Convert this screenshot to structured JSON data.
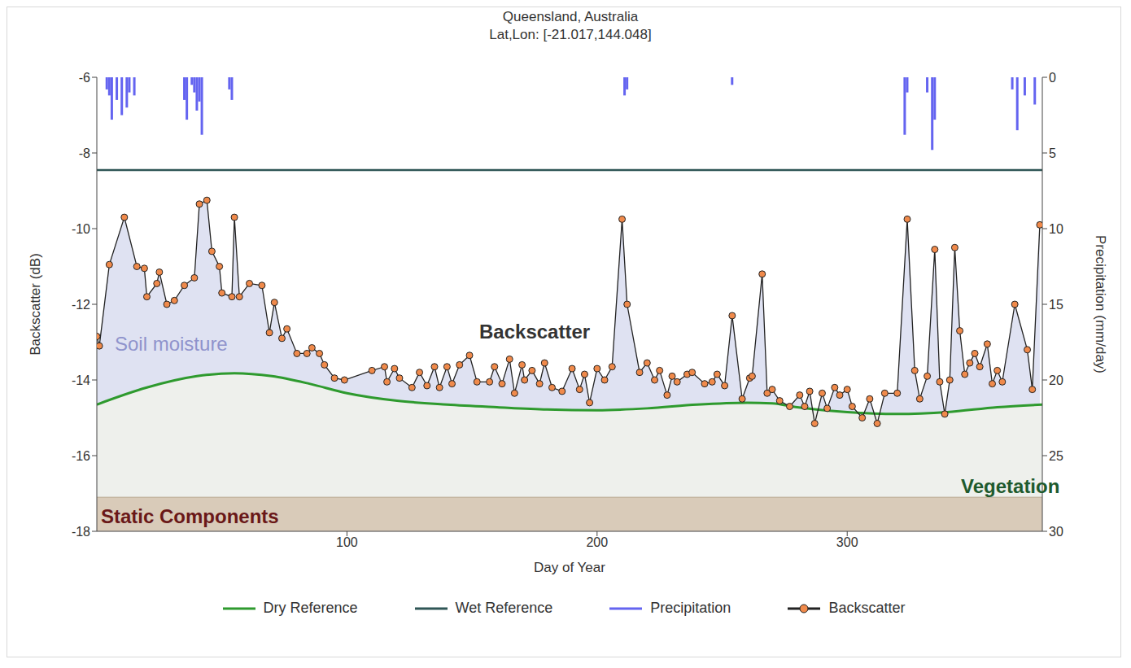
{
  "chart_data": {
    "type": "line",
    "title": "Queensland, Australia",
    "subtitle": "Lat,Lon: [-21.017,144.048]",
    "x_label": "Day of Year",
    "y_label": "Backscatter (dB)",
    "y2_label": "Precipitation (mm/day)",
    "xlim": [
      0,
      378
    ],
    "xticks": [
      100,
      200,
      300
    ],
    "ylim": [
      -18,
      -6
    ],
    "yticks": [
      -18,
      -16,
      -14,
      -12,
      -10,
      -8,
      -6
    ],
    "y2lim": [
      30,
      0
    ],
    "y2ticks": [
      0,
      5,
      10,
      15,
      20,
      25,
      30
    ],
    "annotations": [
      "Soil moisture",
      "Backscatter",
      "Vegetation"
    ],
    "static_components": {
      "label": "Static Components",
      "level": -17.1
    },
    "series": [
      {
        "name": "Dry Reference",
        "color": "#2e9a2e",
        "type": "line",
        "x": [
          0,
          20,
          40,
          55,
          70,
          85,
          100,
          120,
          140,
          160,
          180,
          200,
          220,
          240,
          260,
          270,
          280,
          300,
          320,
          340,
          360,
          378
        ],
        "values": [
          -14.65,
          -14.2,
          -13.9,
          -13.82,
          -13.9,
          -14.1,
          -14.35,
          -14.55,
          -14.65,
          -14.72,
          -14.78,
          -14.8,
          -14.75,
          -14.65,
          -14.6,
          -14.62,
          -14.72,
          -14.85,
          -14.9,
          -14.85,
          -14.72,
          -14.65
        ]
      },
      {
        "name": "Wet Reference",
        "color": "#2f5656",
        "type": "line",
        "x": [
          0,
          378
        ],
        "values": [
          -8.45,
          -8.45
        ]
      },
      {
        "name": "Precipitation",
        "color": "#6464f0",
        "type": "bar",
        "axis": "y2",
        "x": [
          4,
          5,
          6,
          8,
          10,
          12,
          13,
          15,
          35,
          36,
          38,
          39,
          40,
          41,
          42,
          53,
          54,
          211,
          212,
          254,
          323,
          324,
          332,
          334,
          335,
          366,
          368,
          371,
          375
        ],
        "values": [
          0.8,
          1.2,
          2.8,
          1.5,
          2.5,
          2.0,
          1.0,
          1.2,
          1.5,
          2.8,
          0.5,
          1.0,
          2.2,
          1.6,
          3.8,
          0.8,
          1.5,
          1.2,
          0.8,
          0.5,
          3.8,
          1.0,
          1.0,
          4.8,
          2.8,
          0.8,
          3.5,
          1.2,
          1.8
        ]
      },
      {
        "name": "Backscatter",
        "color": "#222222",
        "type": "line",
        "marker": "circle",
        "x": [
          0,
          1,
          5,
          11,
          16,
          19,
          20,
          24,
          25,
          28,
          31,
          35,
          39,
          41,
          44,
          46,
          49,
          50,
          54,
          55,
          57,
          61,
          66,
          69,
          71,
          74,
          76,
          80,
          84,
          86,
          89,
          91,
          95,
          99,
          110,
          115,
          116,
          119,
          121,
          126,
          129,
          132,
          135,
          137,
          140,
          142,
          145,
          149,
          152,
          157,
          159,
          162,
          165,
          167,
          170,
          171,
          174,
          177,
          179,
          182,
          186,
          190,
          193,
          195,
          197,
          200,
          203,
          206,
          210,
          212,
          217,
          220,
          223,
          225,
          228,
          230,
          232,
          236,
          238,
          243,
          246,
          248,
          251,
          254,
          258,
          261,
          262,
          266,
          268,
          270,
          273,
          277,
          281,
          283,
          285,
          287,
          290,
          292,
          295,
          297,
          300,
          302,
          306,
          309,
          312,
          315,
          320,
          324,
          327,
          329,
          332,
          335,
          337,
          339,
          341,
          343,
          345,
          347,
          349,
          351,
          353,
          356,
          358,
          360,
          362,
          367,
          372,
          374,
          377
        ],
        "values": [
          -12.85,
          -13.1,
          -10.95,
          -9.7,
          -11.0,
          -11.05,
          -11.8,
          -11.45,
          -11.15,
          -12.0,
          -11.9,
          -11.5,
          -11.3,
          -9.35,
          -9.25,
          -10.6,
          -11.0,
          -11.7,
          -11.8,
          -9.7,
          -11.8,
          -11.45,
          -11.5,
          -12.75,
          -11.95,
          -12.9,
          -12.65,
          -13.3,
          -13.3,
          -13.15,
          -13.3,
          -13.6,
          -13.95,
          -14.0,
          -13.75,
          -13.65,
          -14.05,
          -13.7,
          -13.95,
          -14.2,
          -13.8,
          -14.15,
          -13.65,
          -14.2,
          -13.65,
          -14.1,
          -13.6,
          -13.35,
          -14.05,
          -14.05,
          -13.65,
          -14.1,
          -13.45,
          -14.35,
          -13.6,
          -14.0,
          -13.75,
          -14.1,
          -13.55,
          -14.2,
          -14.3,
          -13.7,
          -14.25,
          -13.85,
          -14.6,
          -13.7,
          -14.0,
          -13.65,
          -9.75,
          -12.0,
          -13.8,
          -13.55,
          -14.0,
          -13.75,
          -14.4,
          -13.9,
          -14.05,
          -13.85,
          -13.8,
          -14.1,
          -14.05,
          -13.85,
          -14.15,
          -12.3,
          -14.5,
          -13.95,
          -13.9,
          -11.2,
          -14.35,
          -14.25,
          -14.55,
          -14.7,
          -14.4,
          -14.7,
          -14.3,
          -15.15,
          -14.35,
          -14.75,
          -14.2,
          -14.4,
          -14.25,
          -14.7,
          -15.0,
          -14.5,
          -15.15,
          -14.35,
          -14.35,
          -9.75,
          -13.75,
          -14.5,
          -13.9,
          -10.55,
          -14.05,
          -14.9,
          -14.0,
          -10.5,
          -12.7,
          -13.85,
          -13.55,
          -13.3,
          -13.65,
          -13.05,
          -14.1,
          -13.75,
          -14.05,
          -12.0,
          -13.2,
          -14.25,
          -9.9
        ]
      }
    ]
  }
}
